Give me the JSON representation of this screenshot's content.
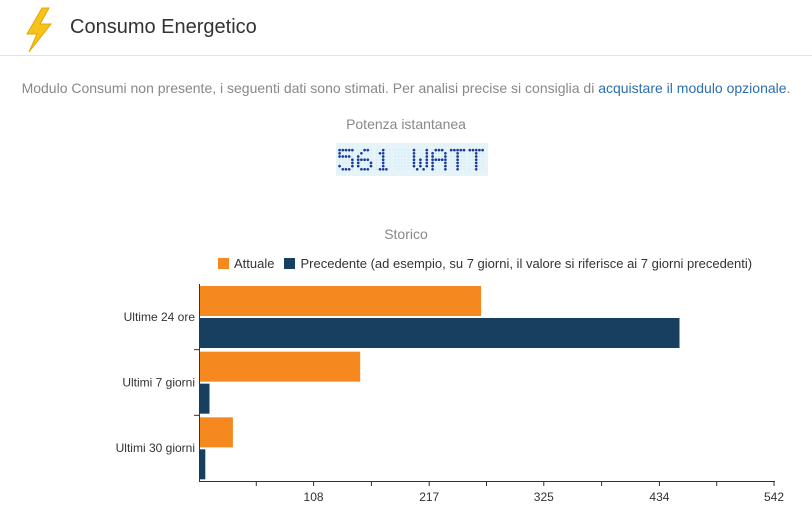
{
  "header": {
    "title": "Consumo Energetico",
    "icon": "lightning-bolt-icon",
    "icon_color": "#f7c21a"
  },
  "notice": {
    "text": "Modulo Consumi non presente, i seguenti dati sono stimati. Per analisi precise si consiglia di ",
    "link_text": "acquistare il modulo opzionale",
    "suffix": "."
  },
  "power": {
    "label": "Potenza istantanea",
    "display": "561 WATT",
    "value": 561,
    "unit": "WATT",
    "digit_color": "#1a3a9a",
    "background": "#e6f4fa"
  },
  "chart_data": {
    "type": "bar",
    "orientation": "horizontal",
    "title": "Storico",
    "categories": [
      "Ultime 24 ore",
      "Ultimi 7 giorni",
      "Ultimi 30 giorni"
    ],
    "series": [
      {
        "name": "Attuale",
        "color": "#f5891f",
        "values": [
          265,
          151,
          31
        ]
      },
      {
        "name": "Precedente (ad esempio, su 7 giorni, il valore si riferisce ai 7 giorni precedenti)",
        "color": "#173f5f",
        "values": [
          452,
          9,
          5
        ]
      }
    ],
    "xlim": [
      0,
      542
    ],
    "xticks": [
      108,
      217,
      325,
      434,
      542
    ],
    "grid": false,
    "legend": "top"
  }
}
